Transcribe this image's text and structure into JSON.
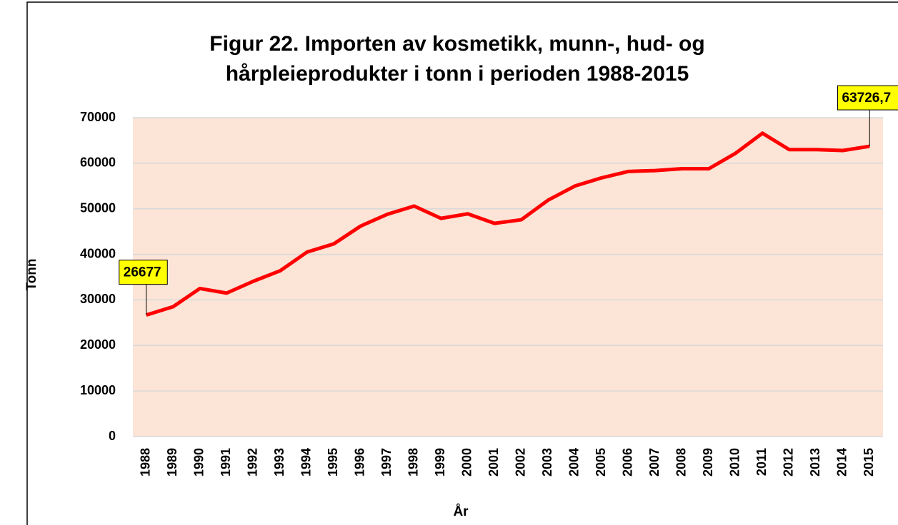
{
  "chart_data": {
    "type": "line",
    "title": "Figur 22. Importen av kosmetikk, munn-, hud- og",
    "subtitle": "hårpleieprodukter i tonn i perioden 1988-2015",
    "y_label": "Tonn",
    "x_label": "År",
    "categories": [
      "1988",
      "1989",
      "1990",
      "1991",
      "1992",
      "1993",
      "1994",
      "1995",
      "1996",
      "1997",
      "1998",
      "1999",
      "2000",
      "2001",
      "2002",
      "2003",
      "2004",
      "2005",
      "2006",
      "2007",
      "2008",
      "2009",
      "2010",
      "2011",
      "2012",
      "2013",
      "2014",
      "2015"
    ],
    "series": [
      {
        "name": "Tonn",
        "color": "#ff0000",
        "values": [
          26677,
          28500,
          32500,
          31500,
          34100,
          36400,
          40500,
          42300,
          46200,
          48800,
          50600,
          47900,
          48900,
          46800,
          47600,
          51900,
          55000,
          56800,
          58200,
          58400,
          58800,
          58800,
          62200,
          66600,
          63000,
          63000,
          62800,
          63726.7
        ],
        "value_labels": [
          "26677",
          null,
          null,
          null,
          null,
          null,
          null,
          null,
          null,
          null,
          null,
          null,
          null,
          null,
          null,
          null,
          null,
          null,
          null,
          null,
          null,
          null,
          null,
          null,
          null,
          null,
          null,
          "63726,7"
        ]
      }
    ],
    "ylim": [
      0,
      70000
    ],
    "yticks": [
      0,
      10000,
      20000,
      30000,
      40000,
      50000,
      60000,
      70000
    ],
    "grid": true,
    "plot_background": "#fce4d6",
    "label_background": "#ffff00"
  }
}
